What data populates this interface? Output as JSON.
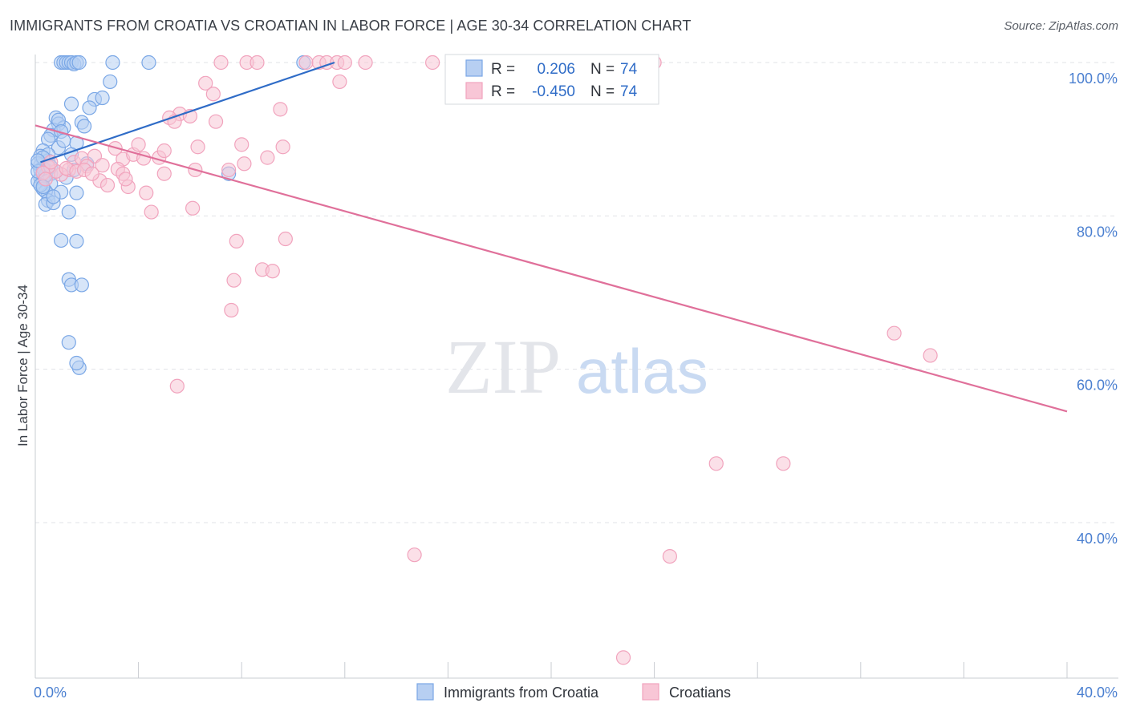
{
  "title": "IMMIGRANTS FROM CROATIA VS CROATIAN IN LABOR FORCE | AGE 30-34 CORRELATION CHART",
  "source": "Source: ZipAtlas.com",
  "watermark": {
    "zip": "ZIP",
    "atlas": "atlas"
  },
  "chart_data": {
    "type": "scatter",
    "ylabel": "In Labor Force | Age 30-34",
    "xlim": [
      0,
      40
    ],
    "ylim": [
      20,
      102
    ],
    "y_ticks": [
      {
        "value": 100,
        "label": "100.0%"
      },
      {
        "value": 80,
        "label": "80.0%"
      },
      {
        "value": 60,
        "label": "60.0%"
      },
      {
        "value": 40,
        "label": "40.0%"
      }
    ],
    "x_tick_labels": {
      "left": "0.0%",
      "right": "40.0%"
    },
    "x_minor_ticks": [
      4,
      8,
      12,
      16,
      20,
      24,
      28,
      32,
      36,
      40
    ],
    "legend": {
      "rows": [
        {
          "r_label": "R =",
          "r_value": "0.206",
          "n_label": "N =",
          "n_value": "74"
        },
        {
          "r_label": "R =",
          "r_value": "-0.450",
          "n_label": "N =",
          "n_value": "74"
        }
      ]
    },
    "series": [
      {
        "name": "Immigrants from Croatia",
        "color": "#7aa7e6",
        "line_color": "#2f6cc7",
        "trend": {
          "x": [
            0.2,
            11.6
          ],
          "y": [
            87.0,
            100.0
          ]
        },
        "points": [
          [
            1.0,
            100
          ],
          [
            1.1,
            100
          ],
          [
            1.2,
            100
          ],
          [
            1.3,
            100
          ],
          [
            1.4,
            100
          ],
          [
            1.5,
            99.8
          ],
          [
            1.6,
            100
          ],
          [
            1.7,
            100
          ],
          [
            3.0,
            100
          ],
          [
            4.4,
            100
          ],
          [
            10.4,
            100
          ],
          [
            2.9,
            97.5
          ],
          [
            1.4,
            94.6
          ],
          [
            2.3,
            95.2
          ],
          [
            2.6,
            95.4
          ],
          [
            2.1,
            94.1
          ],
          [
            0.8,
            92.8
          ],
          [
            0.9,
            92.0
          ],
          [
            0.7,
            91.2
          ],
          [
            1.1,
            91.5
          ],
          [
            0.6,
            90.5
          ],
          [
            1.8,
            92.2
          ],
          [
            1.9,
            91.7
          ],
          [
            0.5,
            90.0
          ],
          [
            0.9,
            88.9
          ],
          [
            1.6,
            89.5
          ],
          [
            0.3,
            88.5
          ],
          [
            0.2,
            87.8
          ],
          [
            0.5,
            87.2
          ],
          [
            0.2,
            86.6
          ],
          [
            0.4,
            86.0
          ],
          [
            0.6,
            85.5
          ],
          [
            0.2,
            85.0
          ],
          [
            0.3,
            84.8
          ],
          [
            0.1,
            84.5
          ],
          [
            1.2,
            85.0
          ],
          [
            0.6,
            84.2
          ],
          [
            0.3,
            83.5
          ],
          [
            0.5,
            82.8
          ],
          [
            0.4,
            83.2
          ],
          [
            0.5,
            82.0
          ],
          [
            0.4,
            81.5
          ],
          [
            1.3,
            80.5
          ],
          [
            0.7,
            81.7
          ],
          [
            1.0,
            83.1
          ],
          [
            1.6,
            83.0
          ],
          [
            1.0,
            76.8
          ],
          [
            1.6,
            76.7
          ],
          [
            1.3,
            71.7
          ],
          [
            1.4,
            71.0
          ],
          [
            1.8,
            71.0
          ],
          [
            1.3,
            63.5
          ],
          [
            1.7,
            60.2
          ],
          [
            1.6,
            60.8
          ],
          [
            7.5,
            85.5
          ],
          [
            0.1,
            86.8
          ],
          [
            0.2,
            86.0
          ],
          [
            0.4,
            85.3
          ],
          [
            0.3,
            86.2
          ],
          [
            0.1,
            85.8
          ],
          [
            0.5,
            88.0
          ],
          [
            1.4,
            88.0
          ],
          [
            2.0,
            86.8
          ],
          [
            0.3,
            87.6
          ],
          [
            0.1,
            87.2
          ],
          [
            0.2,
            84.0
          ],
          [
            0.6,
            86.4
          ],
          [
            0.8,
            85.8
          ],
          [
            1.5,
            86.0
          ],
          [
            0.3,
            83.8
          ],
          [
            0.7,
            82.5
          ],
          [
            0.9,
            92.5
          ],
          [
            1.0,
            91.0
          ],
          [
            1.1,
            89.8
          ]
        ]
      },
      {
        "name": "Croatians",
        "color": "#f1a3bd",
        "line_color": "#e0709a",
        "trend": {
          "x": [
            0.0,
            40.0
          ],
          "y": [
            91.8,
            54.5
          ]
        },
        "points": [
          [
            7.2,
            100
          ],
          [
            8.2,
            100
          ],
          [
            8.6,
            100
          ],
          [
            10.5,
            100
          ],
          [
            11.0,
            100
          ],
          [
            11.3,
            100
          ],
          [
            11.7,
            100
          ],
          [
            12.0,
            100
          ],
          [
            12.8,
            100
          ],
          [
            15.4,
            100
          ],
          [
            24.0,
            100
          ],
          [
            6.6,
            97.3
          ],
          [
            11.8,
            97.5
          ],
          [
            6.9,
            95.9
          ],
          [
            9.5,
            93.9
          ],
          [
            5.6,
            93.3
          ],
          [
            5.2,
            92.8
          ],
          [
            5.4,
            92.3
          ],
          [
            6.0,
            93.0
          ],
          [
            7.0,
            92.3
          ],
          [
            3.1,
            88.8
          ],
          [
            3.4,
            87.4
          ],
          [
            3.8,
            88.0
          ],
          [
            4.0,
            89.3
          ],
          [
            4.2,
            87.5
          ],
          [
            4.8,
            87.6
          ],
          [
            5.0,
            88.5
          ],
          [
            6.3,
            89.0
          ],
          [
            8.0,
            89.3
          ],
          [
            9.6,
            89.0
          ],
          [
            9.0,
            87.6
          ],
          [
            8.1,
            86.8
          ],
          [
            1.5,
            87.0
          ],
          [
            1.8,
            87.5
          ],
          [
            2.3,
            87.8
          ],
          [
            2.6,
            86.6
          ],
          [
            3.2,
            86.1
          ],
          [
            3.4,
            85.5
          ],
          [
            2.0,
            86.5
          ],
          [
            1.3,
            86.0
          ],
          [
            1.0,
            85.4
          ],
          [
            0.8,
            85.8
          ],
          [
            0.5,
            86.4
          ],
          [
            0.3,
            85.6
          ],
          [
            0.4,
            84.8
          ],
          [
            2.5,
            84.6
          ],
          [
            2.8,
            84.0
          ],
          [
            3.6,
            83.8
          ],
          [
            4.3,
            83.0
          ],
          [
            6.2,
            86.0
          ],
          [
            7.5,
            86.0
          ],
          [
            5.0,
            85.5
          ],
          [
            1.2,
            86.2
          ],
          [
            1.6,
            85.8
          ],
          [
            1.9,
            86.0
          ],
          [
            4.5,
            80.5
          ],
          [
            6.1,
            81.0
          ],
          [
            7.8,
            76.7
          ],
          [
            9.7,
            77.0
          ],
          [
            8.8,
            73.0
          ],
          [
            9.2,
            72.8
          ],
          [
            7.7,
            71.6
          ],
          [
            7.6,
            67.7
          ],
          [
            5.5,
            57.8
          ],
          [
            33.3,
            64.7
          ],
          [
            34.7,
            61.8
          ],
          [
            26.4,
            47.7
          ],
          [
            29.0,
            47.7
          ],
          [
            14.7,
            35.8
          ],
          [
            24.6,
            35.6
          ],
          [
            22.8,
            22.4
          ],
          [
            0.6,
            87.0
          ],
          [
            2.2,
            85.5
          ],
          [
            3.5,
            84.8
          ]
        ]
      }
    ]
  }
}
